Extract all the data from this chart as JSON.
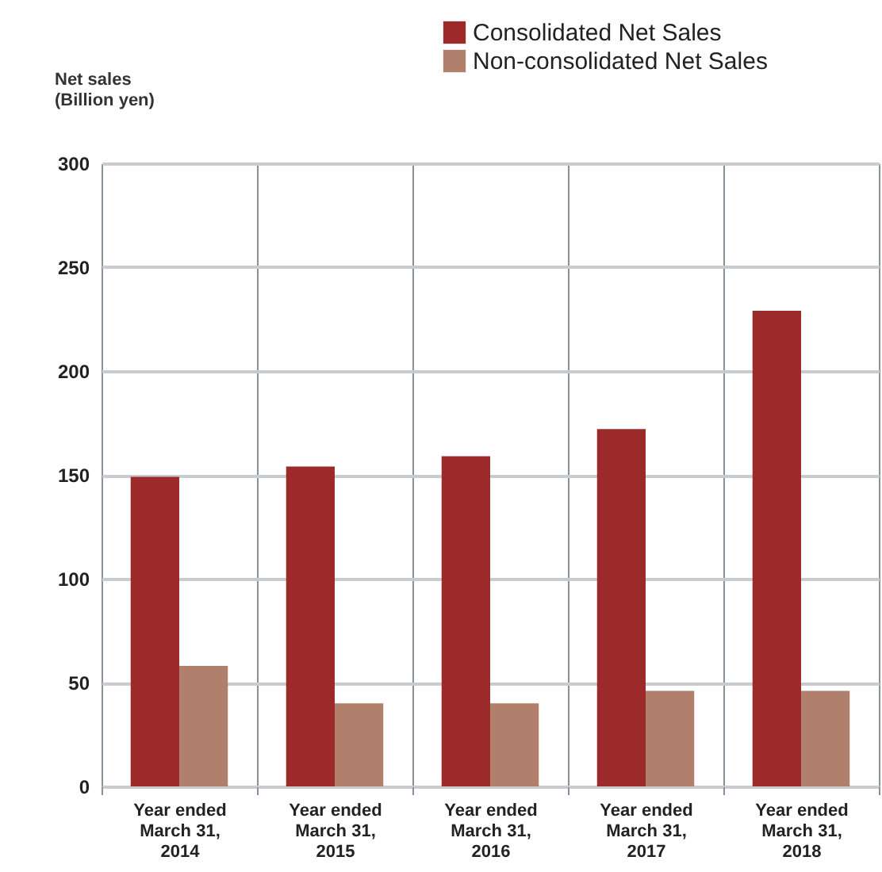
{
  "chart_data": {
    "type": "bar",
    "ylabel": "Net sales\n(Billion yen)",
    "categories": [
      "Year ended March 31, 2014",
      "Year ended March 31, 2015",
      "Year ended March 31, 2016",
      "Year ended March 31, 2017",
      "Year ended March 31, 2018"
    ],
    "series": [
      {
        "name": "Consolidated Net Sales",
        "color": "#9c2a2b",
        "values": [
          149,
          154,
          159,
          172,
          229
        ]
      },
      {
        "name": "Non-consolidated Net Sales",
        "color": "#b0806c",
        "values": [
          58,
          40,
          40,
          46,
          46
        ]
      }
    ],
    "ylim": [
      0,
      300
    ],
    "yticks": [
      0,
      50,
      100,
      150,
      200,
      250,
      300
    ],
    "grid": true,
    "legend": "top right"
  }
}
